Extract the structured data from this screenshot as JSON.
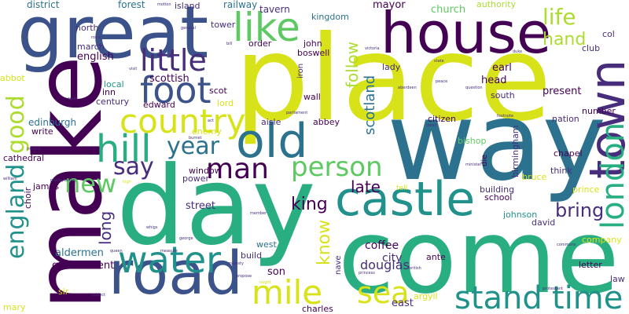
{
  "palette": {
    "purple": "#440154",
    "indigo": "#472d7b",
    "blue": "#3b528b",
    "steel": "#2c728e",
    "teal": "#21918c",
    "green_teal": "#28ae80",
    "green": "#5ec962",
    "lime": "#addc30",
    "yellow": "#d8e219"
  },
  "words": {
    "place": "place",
    "way": "way",
    "day": "day",
    "come": "come",
    "make": "make",
    "great": "great",
    "house": "house",
    "road": "road",
    "old": "old",
    "castle": "castle",
    "town": "town",
    "country": "country",
    "hill": "hill",
    "foot": "foot",
    "little": "little",
    "like": "like",
    "london": "london",
    "water": "water",
    "stand": "stand",
    "time": "time",
    "mile": "mile",
    "sea": "sea",
    "man": "man",
    "person": "person",
    "year": "year",
    "say": "say",
    "new": "new",
    "england": "england",
    "good": "good",
    "life": "life",
    "hand": "hand",
    "king": "king",
    "bring": "bring",
    "late": "late",
    "long": "long",
    "know": "know",
    "follow": "follow",
    "scotland": "scotland",
    "street": "street",
    "douglas": "douglas",
    "coffee": "coffee",
    "city": "city",
    "government": "government",
    "son": "son",
    "aldermen": "aldermen",
    "edinburgh": "edinburgh",
    "english": "english",
    "scottish": "scottish",
    "church": "church",
    "mayor": "mayor",
    "authority": "authority",
    "district": "district",
    "forest": "forest",
    "island": "island",
    "railway": "railway",
    "tavern": "tavern",
    "kingdom": "kingdom",
    "tower": "tower",
    "north": "north",
    "march": "march",
    "abbot": "abbot",
    "local": "local",
    "inn": "inn",
    "century": "century",
    "edward": "edward",
    "scot": "scot",
    "lord": "lord",
    "wall": "wall",
    "abbey": "abbey",
    "aisle": "aisle",
    "cathedral": "cathedral",
    "write": "write",
    "james": "james",
    "choir": "choir",
    "sir": "sir",
    "mary": "mary",
    "window": "window",
    "power": "power",
    "enemy": "enemy",
    "west": "west",
    "build": "build",
    "ante": "ante",
    "east": "east",
    "charles": "charles",
    "argyll": "argyll",
    "citizen": "citizen",
    "bishop": "bishop",
    "birmingham": "birmingham",
    "chapel": "chapel",
    "think": "think",
    "prince": "prince",
    "building": "building",
    "school": "school",
    "johnson": "johnson",
    "david": "david",
    "company": "company",
    "letter": "letter",
    "law": "law",
    "present": "present",
    "south": "south",
    "head": "head",
    "earl": "earl",
    "lady": "lady",
    "nation": "nation",
    "number": "number",
    "club": "club",
    "col": "col",
    "john": "john",
    "boswell": "boswell",
    "order": "order",
    "iron": "iron",
    "die": "die",
    "bruce": "bruce",
    "nave": "nave",
    "tell": "tell",
    "motion": "motion",
    "royal": "royal",
    "bill": "bill",
    "general": "general",
    "visit": "visit",
    "victoria": "victoria",
    "duke": "duke",
    "state": "state",
    "aberdeen": "aberdeen",
    "question": "question",
    "parliament": "parliament",
    "footnote": "footnote",
    "burnet": "burnet",
    "act": "act",
    "minister": "minister",
    "protestant": "protestant",
    "commons": "commons",
    "princess": "princess",
    "british": "british",
    "majesty": "majesty",
    "propose": "propose",
    "queen": "queen",
    "whigs": "whigs",
    "measure": "measure",
    "george": "george",
    "presbyterian": "presbyterian",
    "ireland": "ireland",
    "william": "william",
    "high": "high",
    "court": "court",
    "subject": "subject",
    "member": "member",
    "ought": "ought",
    "peace": "peace",
    "dwell": "dwell"
  }
}
